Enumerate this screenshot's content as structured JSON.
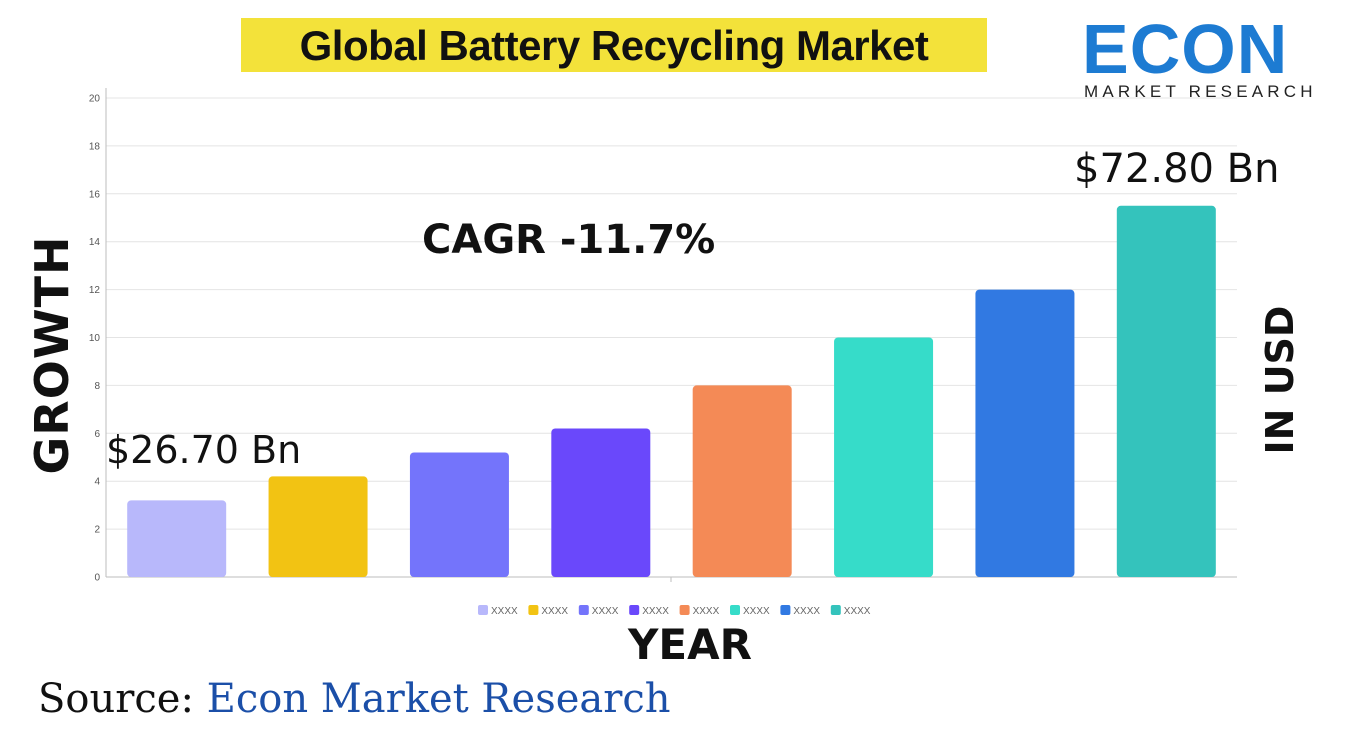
{
  "title": "Global Battery Recycling Market",
  "logo": {
    "word": "ECON",
    "subtitle": "MARKET RESEARCH"
  },
  "axis_labels": {
    "y": "GROWTH",
    "x": "YEAR",
    "right": "IN USD"
  },
  "annotations": {
    "cagr": "CAGR -11.7%",
    "start_value": "$26.70 Bn",
    "end_value": "$72.80 Bn"
  },
  "source": {
    "prefix": "Source:",
    "name": "Econ Market Research"
  },
  "chart_data": {
    "type": "bar",
    "title": "Global Battery Recycling Market",
    "xlabel": "YEAR",
    "ylabel": "GROWTH",
    "ylim": [
      0,
      20
    ],
    "yticks": [
      0,
      2,
      4,
      6,
      8,
      10,
      12,
      14,
      16,
      18,
      20
    ],
    "grid": true,
    "legend": "bottom",
    "categories": [
      "XXXX",
      "XXXX",
      "XXXX",
      "XXXX",
      "XXXX",
      "XXXX",
      "XXXX",
      "XXXX"
    ],
    "values": [
      3.2,
      4.2,
      5.2,
      6.2,
      8.0,
      10.0,
      12.0,
      15.5
    ],
    "colors": [
      "#b8b8fb",
      "#f2c313",
      "#7474fb",
      "#6a48fb",
      "#f48a56",
      "#36dcc9",
      "#3179e2",
      "#34c3bc"
    ]
  }
}
